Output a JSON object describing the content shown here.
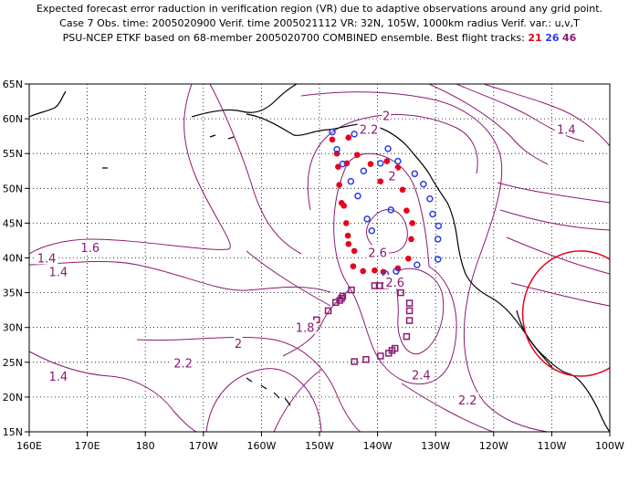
{
  "header": {
    "line1": "Expected forecast error raduction in verification region (VR) due to adaptive observations around any grid point.",
    "line2": "Case 7   Obs. time: 2005020900   Verif. time 2005021112   VR: 32N, 105W, 1000km radius   Verif. var.: u,v,T",
    "line3_prefix": "PSU-NCEP ETKF based on 68-member 2005020700 COMBINED ensemble.   Best flight tracks: ",
    "track_labels": [
      "21",
      "26",
      "46"
    ]
  },
  "axes": {
    "x_ticks": [
      "160E",
      "170E",
      "180",
      "170W",
      "160W",
      "150W",
      "140W",
      "130W",
      "120W",
      "110W",
      "100W"
    ],
    "y_ticks": [
      "15N",
      "20N",
      "25N",
      "30N",
      "35N",
      "40N",
      "45N",
      "50N",
      "55N",
      "60N",
      "65N"
    ],
    "lon_range": [
      160,
      260
    ],
    "lat_range": [
      15,
      65
    ]
  },
  "contour_labels": [
    {
      "text": "2",
      "lon": 221.5,
      "lat": 60.5
    },
    {
      "text": "2.2",
      "lon": 218.5,
      "lat": 58.5
    },
    {
      "text": "1.4",
      "lon": 252.5,
      "lat": 58.5
    },
    {
      "text": "2",
      "lon": 222.5,
      "lat": 51.8
    },
    {
      "text": "2.6",
      "lon": 220.0,
      "lat": 40.8
    },
    {
      "text": "2.6",
      "lon": 223.0,
      "lat": 36.5
    },
    {
      "text": "1.6",
      "lon": 170.5,
      "lat": 41.5
    },
    {
      "text": "1.4",
      "lon": 163.0,
      "lat": 40.0
    },
    {
      "text": "1.4",
      "lon": 165.0,
      "lat": 23.0
    },
    {
      "text": "1.4",
      "lon": 165.0,
      "lat": 38.0
    },
    {
      "text": "1.8",
      "lon": 207.5,
      "lat": 30.0
    },
    {
      "text": "2",
      "lon": 196.0,
      "lat": 27.7
    },
    {
      "text": "2.2",
      "lon": 186.5,
      "lat": 24.9
    },
    {
      "text": "2.4",
      "lon": 227.5,
      "lat": 23.2
    },
    {
      "text": "2.2",
      "lon": 235.5,
      "lat": 19.6
    }
  ],
  "verification_region": {
    "lon": 255,
    "lat": 32,
    "radius_deg_lon": 10,
    "radius_deg_lat": 9.0,
    "color": "#e8001c"
  },
  "tracks": [
    {
      "id": "21",
      "color": "#e8001c",
      "marker": "filled-circle",
      "points": [
        [
          212.2,
          57.0
        ],
        [
          213.2,
          53.1
        ],
        [
          213.4,
          50.5
        ],
        [
          214.2,
          47.5
        ],
        [
          214.6,
          45.0
        ],
        [
          215.0,
          42.0
        ],
        [
          215.8,
          38.8
        ],
        [
          217.5,
          38.1
        ],
        [
          219.5,
          38.2
        ],
        [
          221.0,
          38.0
        ],
        [
          223.5,
          38.5
        ],
        [
          225.3,
          39.9
        ],
        [
          225.8,
          42.7
        ],
        [
          226.0,
          45.0
        ],
        [
          225.0,
          46.8
        ],
        [
          224.3,
          49.8
        ],
        [
          223.5,
          53.0
        ],
        [
          221.6,
          53.9
        ],
        [
          220.5,
          51.0
        ],
        [
          218.8,
          53.5
        ],
        [
          216.5,
          54.8
        ],
        [
          215.0,
          57.3
        ],
        [
          217.5,
          58.0
        ],
        [
          213.0,
          55.0
        ],
        [
          214.7,
          53.6
        ],
        [
          213.8,
          47.9
        ],
        [
          214.9,
          43.2
        ],
        [
          216.0,
          41.0
        ]
      ]
    },
    {
      "id": "26",
      "color": "#2a3de8",
      "marker": "open-circle",
      "points": [
        [
          212.2,
          58.1
        ],
        [
          213.0,
          55.6
        ],
        [
          214.0,
          53.5
        ],
        [
          215.4,
          51.0
        ],
        [
          216.6,
          48.9
        ],
        [
          218.2,
          45.6
        ],
        [
          219.0,
          43.9
        ],
        [
          220.2,
          41.3
        ],
        [
          221.4,
          37.7
        ],
        [
          223.2,
          38.1
        ],
        [
          226.8,
          39.0
        ],
        [
          230.4,
          39.8
        ],
        [
          230.4,
          42.7
        ],
        [
          230.5,
          44.6
        ],
        [
          229.5,
          46.3
        ],
        [
          229.0,
          48.5
        ],
        [
          227.9,
          50.6
        ],
        [
          226.4,
          52.1
        ],
        [
          223.5,
          53.9
        ],
        [
          221.8,
          55.7
        ],
        [
          220.5,
          53.6
        ],
        [
          216.0,
          57.8
        ],
        [
          217.6,
          52.5
        ],
        [
          222.3,
          46.9
        ]
      ]
    },
    {
      "id": "46",
      "color": "#8b1a72",
      "marker": "open-square",
      "points": [
        [
          207.8,
          29.8
        ],
        [
          209.5,
          31.1
        ],
        [
          211.5,
          32.4
        ],
        [
          212.8,
          33.6
        ],
        [
          213.5,
          33.9
        ],
        [
          214.0,
          34.5
        ],
        [
          215.5,
          35.4
        ],
        [
          219.5,
          36.0
        ],
        [
          220.3,
          36.0
        ],
        [
          221.3,
          36.0
        ],
        [
          224.0,
          35.0
        ],
        [
          225.5,
          33.5
        ],
        [
          225.5,
          32.4
        ],
        [
          225.5,
          31.0
        ],
        [
          225.0,
          28.7
        ],
        [
          223.0,
          27.0
        ],
        [
          221.9,
          26.3
        ],
        [
          220.5,
          25.9
        ],
        [
          218.0,
          25.4
        ],
        [
          216.0,
          25.1
        ],
        [
          222.5,
          26.7
        ],
        [
          213.8,
          34.2
        ]
      ]
    }
  ],
  "colors": {
    "contour": "#8b1a72",
    "coast": "#000000",
    "frame": "#000000"
  }
}
